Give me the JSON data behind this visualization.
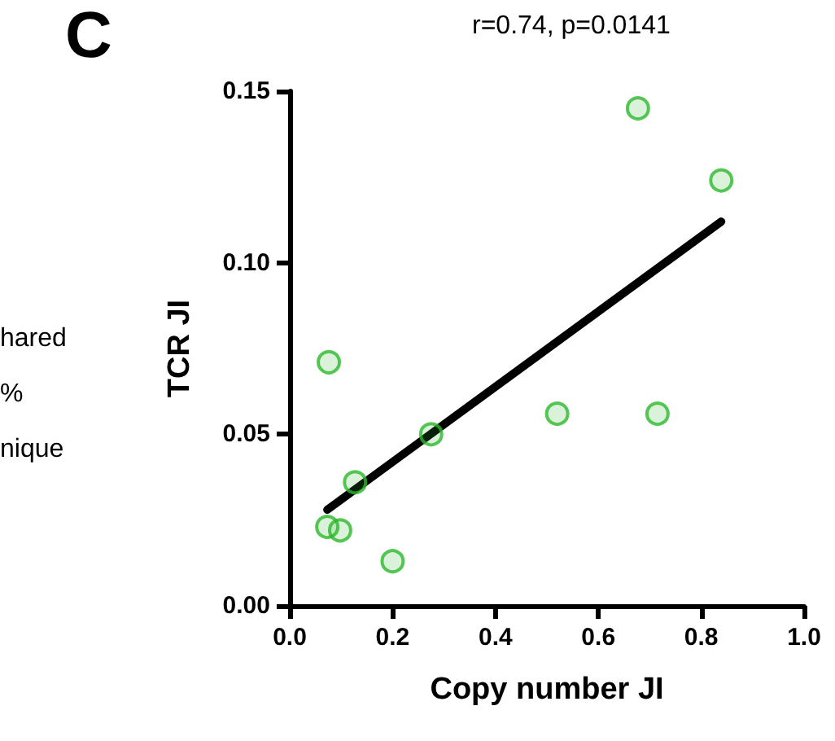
{
  "chart_data": {
    "type": "scatter",
    "xlabel": "Copy number JI",
    "ylabel": "TCR JI",
    "annotations": [
      "C",
      "hared",
      "%",
      "nique",
      "r=0.74, p=0.0141"
    ],
    "xlim": [
      0,
      1.0
    ],
    "xticks": [
      {
        "value": 0,
        "label": "0.0"
      },
      0.2,
      0.4,
      0.6,
      0.8,
      {
        "value": 1,
        "label": "1.0"
      }
    ],
    "ylim": [
      0,
      0.15
    ],
    "yticks": [
      {
        "value": 0,
        "label": "0.00"
      },
      0.05,
      {
        "value": 0.1,
        "label": "0.10"
      },
      0.15
    ],
    "grid": false,
    "marker": "circle",
    "series": [
      {
        "color": "#2cb82c",
        "x": [
          0.076,
          0.073,
          0.098,
          0.127,
          0.2,
          0.275,
          0.52,
          0.715,
          0.677,
          0.839
        ],
        "values": [
          0.071,
          0.023,
          0.022,
          0.036,
          0.013,
          0.05,
          0.056,
          0.056,
          0.145,
          0.124
        ]
      },
      {
        "type": "line",
        "color": "#000000",
        "marker": "none",
        "line_style": "solid",
        "x": [
          0.073,
          0.839
        ],
        "values": [
          0.028,
          0.112
        ]
      }
    ]
  }
}
